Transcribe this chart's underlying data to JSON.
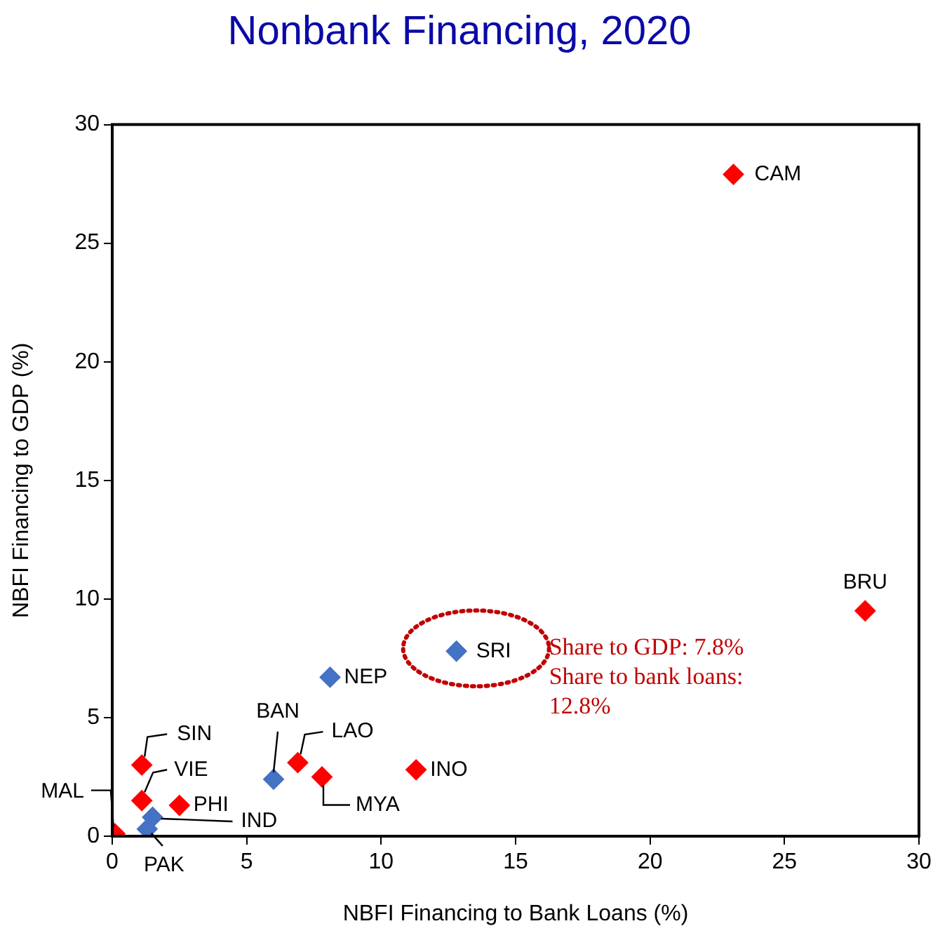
{
  "chart_data": {
    "type": "scatter",
    "title": "Nonbank Financing, 2020",
    "xlabel": "NBFI Financing to Bank Loans (%)",
    "ylabel": "NBFI Financing to GDP (%)",
    "series": [
      {
        "color": "#ff0000",
        "x": [
          23.1,
          28.0,
          11.3,
          6.9,
          7.8,
          1.1,
          1.1,
          2.5,
          0.1
        ],
        "values": [
          27.9,
          9.5,
          2.8,
          3.1,
          2.5,
          3.0,
          1.5,
          1.3,
          0.1
        ]
      },
      {
        "color": "#4472c4",
        "x": [
          12.8,
          8.1,
          6.0,
          1.5,
          1.3
        ],
        "values": [
          7.8,
          6.7,
          2.4,
          0.8,
          0.3
        ]
      }
    ],
    "annotations": [
      {
        "text": "CAM",
        "x": 23.1,
        "y": 27.9
      },
      {
        "text": "BRU",
        "x": 28.0,
        "y": 9.5
      },
      {
        "text": "INO",
        "x": 11.3,
        "y": 2.8
      },
      {
        "text": "LAO",
        "x": 6.9,
        "y": 3.1
      },
      {
        "text": "MYA",
        "x": 7.8,
        "y": 2.5
      },
      {
        "text": "SIN",
        "x": 1.1,
        "y": 3.0
      },
      {
        "text": "VIE",
        "x": 1.1,
        "y": 1.5
      },
      {
        "text": "PHI",
        "x": 2.5,
        "y": 1.3
      },
      {
        "text": "MAL",
        "x": 0.1,
        "y": 0.1
      },
      {
        "text": "SRI",
        "x": 12.8,
        "y": 7.8
      },
      {
        "text": "NEP",
        "x": 8.1,
        "y": 6.7
      },
      {
        "text": "BAN",
        "x": 6.0,
        "y": 2.4
      },
      {
        "text": "IND",
        "x": 1.5,
        "y": 0.8
      },
      {
        "text": "PAK",
        "x": 1.3,
        "y": 0.3
      },
      "Share to GDP: 7.8% Share to bank loans: 12.8%"
    ],
    "xlim": [
      0,
      30
    ],
    "ylim": [
      0,
      30
    ],
    "xticks": [
      0,
      5,
      10,
      15,
      20,
      25,
      30
    ],
    "yticks": [
      0,
      5,
      10,
      15,
      20,
      25,
      30
    ],
    "marker": "diamond",
    "grid": false,
    "legend": false
  }
}
